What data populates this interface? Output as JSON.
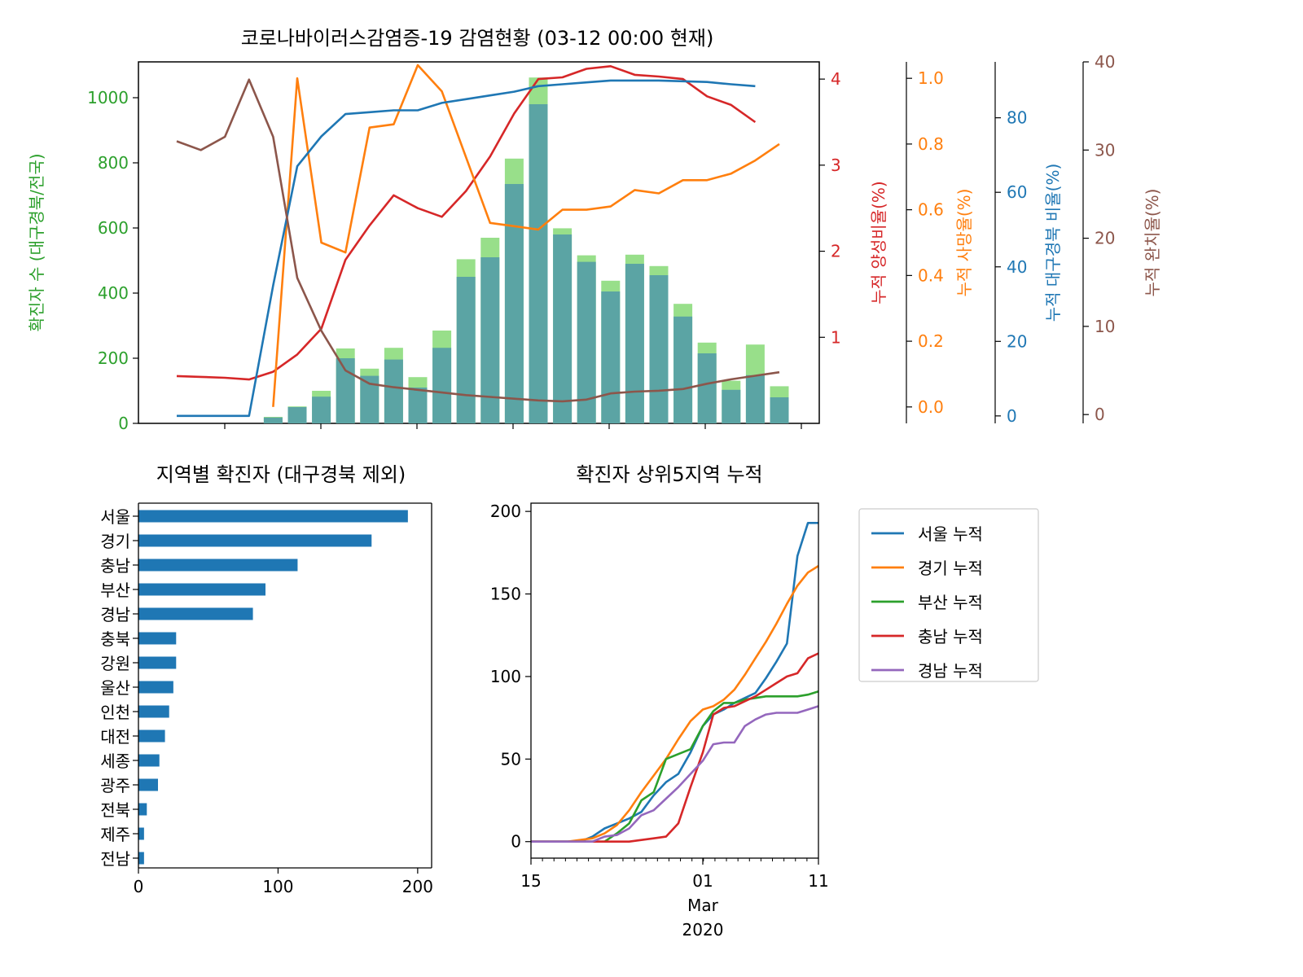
{
  "colors": {
    "green": "#2ca02c",
    "green_light": "#98df8a",
    "bar_teal": "#5ba4a4",
    "red": "#d62728",
    "orange": "#ff7f0e",
    "blue": "#1f77b4",
    "brown": "#8c564b",
    "purple": "#9467bd"
  },
  "chart_data": [
    {
      "type": "bar",
      "title": "코로나바이러스감염증-19 감염현황 (03-12 00:00 현재)",
      "xlabel": "",
      "ylabel": "확진자 수 (대구경북/전국)",
      "ylim": [
        0,
        1110
      ],
      "yticks": [
        0,
        200,
        400,
        600,
        800,
        1000
      ],
      "series": [
        {
          "name": "전국",
          "values": [
            0,
            0,
            0,
            0,
            20,
            52,
            100,
            230,
            168,
            232,
            142,
            285,
            504,
            570,
            813,
            1062,
            599,
            516,
            438,
            518,
            483,
            367,
            248,
            131,
            242,
            114
          ]
        },
        {
          "name": "대구경북",
          "values": [
            0,
            0,
            0,
            0,
            18,
            50,
            82,
            200,
            146,
            196,
            110,
            232,
            450,
            510,
            735,
            980,
            580,
            496,
            405,
            490,
            455,
            328,
            215,
            103,
            148,
            80
          ]
        }
      ],
      "secondary_axes": [
        {
          "name": "누적 양성비율(%)",
          "ylabel": "누적 양성비율(%)",
          "ylim": [
            0,
            4.2
          ],
          "yticks": [
            1,
            2,
            3,
            4
          ],
          "values": [
            0.55,
            0.54,
            0.53,
            0.51,
            0.6,
            0.8,
            1.1,
            1.9,
            2.3,
            2.65,
            2.5,
            2.4,
            2.7,
            3.1,
            3.6,
            4.0,
            4.02,
            4.12,
            4.15,
            4.05,
            4.03,
            4.0,
            3.8,
            3.7,
            3.5,
            null
          ]
        },
        {
          "name": "누적 사망율(%)",
          "ylabel": "누적 사망율(%)",
          "ylim": [
            -0.05,
            1.05
          ],
          "yticks": [
            0.0,
            0.2,
            0.4,
            0.6,
            0.8,
            1.0
          ],
          "values": [
            null,
            null,
            null,
            null,
            0,
            1.0,
            0.5,
            0.47,
            0.85,
            0.86,
            1.04,
            0.96,
            0.76,
            0.56,
            0.55,
            0.54,
            0.6,
            0.6,
            0.61,
            0.66,
            0.65,
            0.69,
            0.69,
            0.71,
            0.75,
            0.8
          ]
        },
        {
          "name": "누적 대구경북 비율(%)",
          "ylabel": "누적 대구경북 비율(%)",
          "ylim": [
            -2,
            95
          ],
          "yticks": [
            0,
            20,
            40,
            60,
            80
          ],
          "values": [
            0,
            0,
            0,
            0,
            35,
            67,
            75,
            81,
            81.5,
            82,
            82,
            84,
            85,
            86,
            87,
            88.5,
            89,
            89.5,
            90,
            90,
            90,
            89.8,
            89.6,
            89,
            88.5,
            null
          ]
        },
        {
          "name": "누적 완치율(%)",
          "ylabel": "누적 완치율(%)",
          "ylim": [
            -1,
            40
          ],
          "yticks": [
            0,
            10,
            20,
            30,
            40
          ],
          "values": [
            31,
            30,
            31.5,
            38,
            31.5,
            15.5,
            9.5,
            5,
            3.5,
            3.1,
            2.8,
            2.5,
            2.2,
            2.0,
            1.8,
            1.6,
            1.5,
            1.7,
            2.4,
            2.6,
            2.7,
            2.9,
            3.5,
            4.0,
            4.4,
            4.8
          ]
        }
      ]
    },
    {
      "type": "bar",
      "orientation": "horizontal",
      "title": "지역별 확진자 (대구경북 제외)",
      "categories": [
        "서울",
        "경기",
        "충남",
        "부산",
        "경남",
        "충북",
        "강원",
        "울산",
        "인천",
        "대전",
        "세종",
        "광주",
        "전북",
        "제주",
        "전남"
      ],
      "values": [
        193,
        167,
        114,
        91,
        82,
        27,
        27,
        25,
        22,
        19,
        15,
        14,
        6,
        4,
        4
      ],
      "xlim": [
        0,
        210
      ],
      "xticks": [
        0,
        100,
        200
      ]
    },
    {
      "type": "line",
      "title": "확진자 상위5지역 누적",
      "x": [
        "2020-02-15",
        "2020-02-16",
        "2020-02-17",
        "2020-02-18",
        "2020-02-19",
        "2020-02-20",
        "2020-02-21",
        "2020-02-22",
        "2020-02-23",
        "2020-02-24",
        "2020-02-25",
        "2020-02-26",
        "2020-02-27",
        "2020-02-28",
        "2020-02-29",
        "2020-03-01",
        "2020-03-02",
        "2020-03-03",
        "2020-03-04",
        "2020-03-05",
        "2020-03-06",
        "2020-03-07",
        "2020-03-08",
        "2020-03-09",
        "2020-03-10",
        "2020-03-11"
      ],
      "xticks": [
        "15",
        "01",
        "11"
      ],
      "xtick_sublabels": [
        "Mar",
        "2020"
      ],
      "ylim": [
        -10,
        205
      ],
      "yticks": [
        0,
        50,
        100,
        150,
        200
      ],
      "series": [
        {
          "name": "서울 누적",
          "values": [
            0,
            0,
            0,
            0,
            0,
            3,
            8,
            11,
            14,
            18,
            28,
            36,
            41,
            54,
            70,
            77,
            80,
            84,
            87,
            90,
            99,
            109,
            120,
            173,
            193,
            193
          ]
        },
        {
          "name": "경기 누적",
          "values": [
            0,
            0,
            0,
            0,
            1,
            2,
            5,
            10,
            19,
            30,
            40,
            50,
            62,
            73,
            80,
            82,
            86,
            92,
            101,
            111,
            121,
            132,
            144,
            155,
            163,
            167
          ]
        },
        {
          "name": "부산 누적",
          "values": [
            0,
            0,
            0,
            0,
            0,
            0,
            0,
            5,
            11,
            25,
            30,
            50,
            53,
            56,
            70,
            79,
            84,
            84,
            86,
            87,
            88,
            88,
            88,
            88,
            89,
            91
          ]
        },
        {
          "name": "충남 누적",
          "values": [
            0,
            0,
            0,
            0,
            0,
            0,
            0,
            0,
            0,
            1,
            2,
            3,
            11,
            33,
            54,
            77,
            81,
            82,
            85,
            88,
            92,
            96,
            100,
            102,
            111,
            114
          ]
        },
        {
          "name": "경남 누적",
          "values": [
            0,
            0,
            0,
            0,
            0,
            0,
            3,
            4,
            8,
            16,
            19,
            26,
            33,
            41,
            49,
            59,
            60,
            60,
            70,
            74,
            77,
            78,
            78,
            78,
            80,
            82
          ]
        }
      ]
    }
  ]
}
